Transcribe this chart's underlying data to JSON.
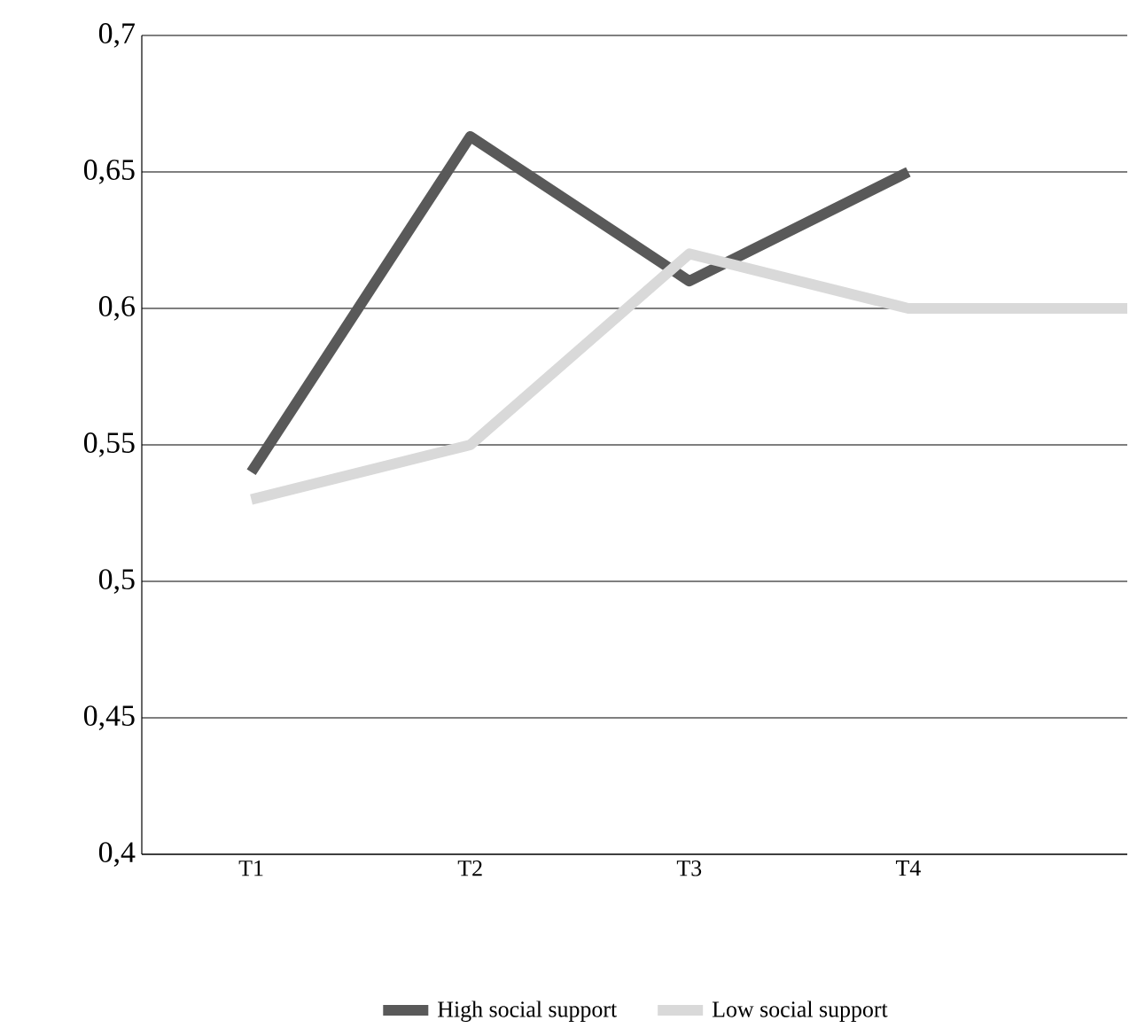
{
  "chart_data": {
    "type": "line",
    "categories": [
      "T1",
      "T2",
      "T3",
      "T4",
      null
    ],
    "series": [
      {
        "name": "High social support",
        "color": "#595959",
        "values": [
          0.54,
          0.663,
          0.61,
          0.65,
          null
        ]
      },
      {
        "name": "Low social support",
        "color": "#d9d9d9",
        "values": [
          0.53,
          0.55,
          0.62,
          0.6,
          0.6
        ]
      }
    ],
    "ylim": [
      0.4,
      0.7
    ],
    "yticks": [
      {
        "value": 0.4,
        "label": "0,4"
      },
      {
        "value": 0.45,
        "label": "0,45"
      },
      {
        "value": 0.5,
        "label": "0,5"
      },
      {
        "value": 0.55,
        "label": "0,55"
      },
      {
        "value": 0.6,
        "label": "0,6"
      },
      {
        "value": 0.65,
        "label": "0,65"
      },
      {
        "value": 0.7,
        "label": "0,7"
      }
    ],
    "grid": "y",
    "legend": "bottom",
    "marker": "none",
    "line_style": "solid"
  }
}
